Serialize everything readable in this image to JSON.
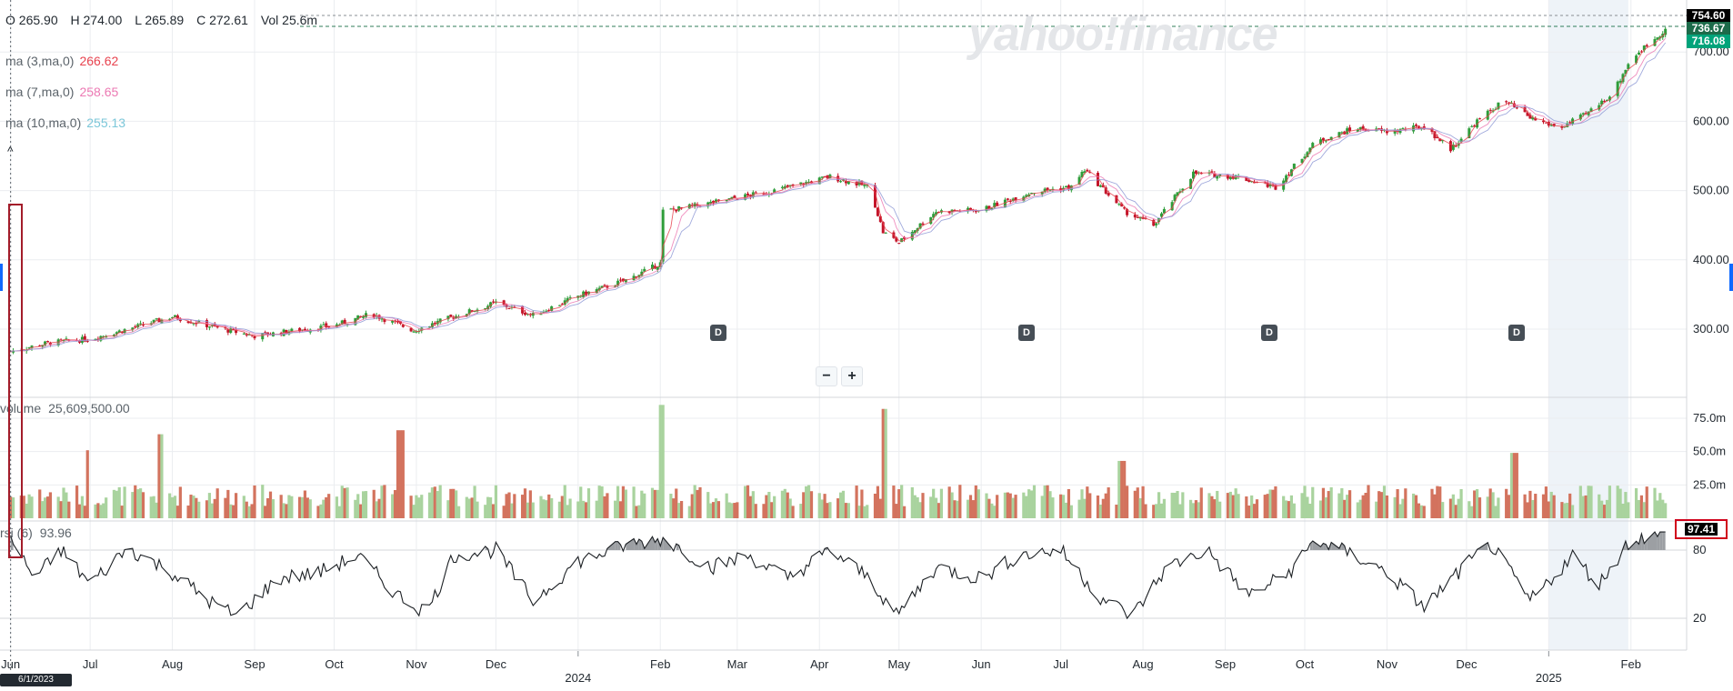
{
  "brand": {
    "watermark": "yahoo!finance"
  },
  "header": {
    "ohlc": {
      "open": "O 265.90",
      "high": "H 274.00",
      "low": "L 265.89",
      "close": "C 272.61",
      "vol": "Vol 25.6m"
    }
  },
  "indicators": {
    "ma3": {
      "label": "ma (3,ma,0)",
      "value": "266.62",
      "color": "#e8434f"
    },
    "ma7": {
      "label": "ma (7,ma,0)",
      "value": "258.65",
      "color": "#ec79b3"
    },
    "ma10": {
      "label": "ma (10,ma,0)",
      "value": "255.13",
      "color": "#7cc7d9"
    },
    "volume": {
      "label": "volume",
      "value": "25,609,500.00"
    },
    "rsi": {
      "label": "rsi (6)",
      "value": "93.96",
      "badge": "97.41"
    }
  },
  "controls": {
    "collapse_glyph": "^",
    "zoom_out": "−",
    "zoom_in": "+"
  },
  "price_badges": [
    {
      "text": "754.60",
      "color": "#000000"
    },
    {
      "text": "736.67",
      "color": "#1c6b4a"
    },
    {
      "text": "716.08",
      "color": "#00a37a"
    }
  ],
  "crosshair_date": "6/1/2023",
  "dividend_marker": "D",
  "colors": {
    "up": "#2e9d3a",
    "down": "#c4152a",
    "vol_up": "#a9d39e",
    "vol_down": "#d3735e",
    "highlight": "#eef3f8"
  },
  "chart_data": [
    {
      "type": "candlestick",
      "series": [
        {
          "name": "ma (3,ma,0)"
        },
        {
          "name": "ma (7,ma,0)"
        },
        {
          "name": "ma (10,ma,0)"
        }
      ],
      "x_ticks": [
        "Jun",
        "Jul",
        "Aug",
        "Sep",
        "Oct",
        "Nov",
        "Dec",
        "2024",
        "Feb",
        "Mar",
        "Apr",
        "May",
        "Jun",
        "Jul",
        "Aug",
        "Sep",
        "Oct",
        "Nov",
        "Dec",
        "2025",
        "Feb"
      ],
      "x_tick_dates": [
        "2023-06-01",
        "2023-07-01",
        "2023-08-01",
        "2023-09-01",
        "2023-10-01",
        "2023-11-01",
        "2023-12-01",
        "2024-01-01",
        "2024-02-01",
        "2024-03-01",
        "2024-04-01",
        "2024-05-01",
        "2024-06-01",
        "2024-07-01",
        "2024-08-01",
        "2024-09-01",
        "2024-10-01",
        "2024-11-01",
        "2024-12-01",
        "2025-01-01",
        "2025-02-01"
      ],
      "y_ticks": [
        "700.00",
        "600.00",
        "500.00",
        "400.00",
        "300.00"
      ],
      "ylim": [
        260,
        760
      ],
      "close_path": [
        [
          "2023-06-01",
          268
        ],
        [
          "2023-06-15",
          280
        ],
        [
          "2023-07-01",
          286
        ],
        [
          "2023-07-20",
          305
        ],
        [
          "2023-08-01",
          318
        ],
        [
          "2023-08-20",
          300
        ],
        [
          "2023-09-01",
          290
        ],
        [
          "2023-09-20",
          300
        ],
        [
          "2023-10-01",
          305
        ],
        [
          "2023-10-15",
          322
        ],
        [
          "2023-10-31",
          298
        ],
        [
          "2023-11-15",
          318
        ],
        [
          "2023-12-01",
          338
        ],
        [
          "2023-12-15",
          320
        ],
        [
          "2024-01-01",
          348
        ],
        [
          "2024-01-20",
          372
        ],
        [
          "2024-02-01",
          395
        ],
        [
          "2024-02-02",
          470
        ],
        [
          "2024-02-20",
          482
        ],
        [
          "2024-03-15",
          500
        ],
        [
          "2024-04-05",
          520
        ],
        [
          "2024-04-20",
          505
        ],
        [
          "2024-04-25",
          440
        ],
        [
          "2024-05-01",
          425
        ],
        [
          "2024-05-15",
          470
        ],
        [
          "2024-06-01",
          472
        ],
        [
          "2024-06-20",
          498
        ],
        [
          "2024-07-05",
          505
        ],
        [
          "2024-07-10",
          530
        ],
        [
          "2024-07-25",
          470
        ],
        [
          "2024-08-05",
          450
        ],
        [
          "2024-08-20",
          525
        ],
        [
          "2024-09-05",
          520
        ],
        [
          "2024-09-20",
          505
        ],
        [
          "2024-10-05",
          570
        ],
        [
          "2024-10-20",
          590
        ],
        [
          "2024-11-01",
          585
        ],
        [
          "2024-11-15",
          592
        ],
        [
          "2024-11-25",
          560
        ],
        [
          "2024-12-05",
          600
        ],
        [
          "2024-12-15",
          630
        ],
        [
          "2024-12-25",
          605
        ],
        [
          "2025-01-05",
          590
        ],
        [
          "2025-01-15",
          610
        ],
        [
          "2025-01-25",
          640
        ],
        [
          "2025-02-01",
          690
        ],
        [
          "2025-02-15",
          736
        ]
      ],
      "highlight_range": [
        "2025-01-01",
        "2025-01-31"
      ]
    },
    {
      "type": "bar",
      "name": "volume",
      "y_ticks": [
        "75.0m",
        "50.0m",
        "25.0m"
      ],
      "ylim": [
        0,
        90000000
      ],
      "spikes": [
        [
          "2024-02-02",
          85000000
        ],
        [
          "2024-04-26",
          82000000
        ],
        [
          "2023-10-26",
          66000000
        ],
        [
          "2023-07-28",
          63000000
        ],
        [
          "2024-12-19",
          49000000
        ],
        [
          "2024-07-24",
          43000000
        ],
        [
          "2023-07-01",
          51000000
        ]
      ],
      "typical_value": 18000000
    },
    {
      "type": "line",
      "name": "rsi (6)",
      "y_ticks": [
        "80",
        "20"
      ],
      "ylim": [
        0,
        100
      ],
      "path": [
        [
          "2023-06-01",
          90
        ],
        [
          "2023-06-10",
          55
        ],
        [
          "2023-06-20",
          80
        ],
        [
          "2023-07-01",
          50
        ],
        [
          "2023-07-15",
          82
        ],
        [
          "2023-08-01",
          60
        ],
        [
          "2023-08-15",
          35
        ],
        [
          "2023-08-25",
          22
        ],
        [
          "2023-09-10",
          55
        ],
        [
          "2023-09-25",
          60
        ],
        [
          "2023-10-10",
          75
        ],
        [
          "2023-10-25",
          40
        ],
        [
          "2023-11-05",
          25
        ],
        [
          "2023-11-15",
          75
        ],
        [
          "2023-12-01",
          80
        ],
        [
          "2023-12-15",
          35
        ],
        [
          "2024-01-01",
          70
        ],
        [
          "2024-01-20",
          85
        ],
        [
          "2024-02-02",
          90
        ],
        [
          "2024-02-20",
          65
        ],
        [
          "2024-03-05",
          75
        ],
        [
          "2024-03-20",
          55
        ],
        [
          "2024-04-05",
          80
        ],
        [
          "2024-04-20",
          55
        ],
        [
          "2024-04-30",
          22
        ],
        [
          "2024-05-15",
          65
        ],
        [
          "2024-06-01",
          55
        ],
        [
          "2024-06-15",
          75
        ],
        [
          "2024-07-01",
          80
        ],
        [
          "2024-07-15",
          40
        ],
        [
          "2024-07-28",
          22
        ],
        [
          "2024-08-10",
          65
        ],
        [
          "2024-08-25",
          80
        ],
        [
          "2024-09-10",
          40
        ],
        [
          "2024-09-25",
          60
        ],
        [
          "2024-10-05",
          89
        ],
        [
          "2024-10-20",
          75
        ],
        [
          "2024-11-01",
          60
        ],
        [
          "2024-11-15",
          30
        ],
        [
          "2024-11-30",
          65
        ],
        [
          "2024-12-10",
          85
        ],
        [
          "2024-12-25",
          35
        ],
        [
          "2025-01-10",
          75
        ],
        [
          "2025-01-20",
          50
        ],
        [
          "2025-02-01",
          90
        ],
        [
          "2025-02-15",
          94
        ]
      ],
      "overbought": 80,
      "oversold": 20
    }
  ]
}
